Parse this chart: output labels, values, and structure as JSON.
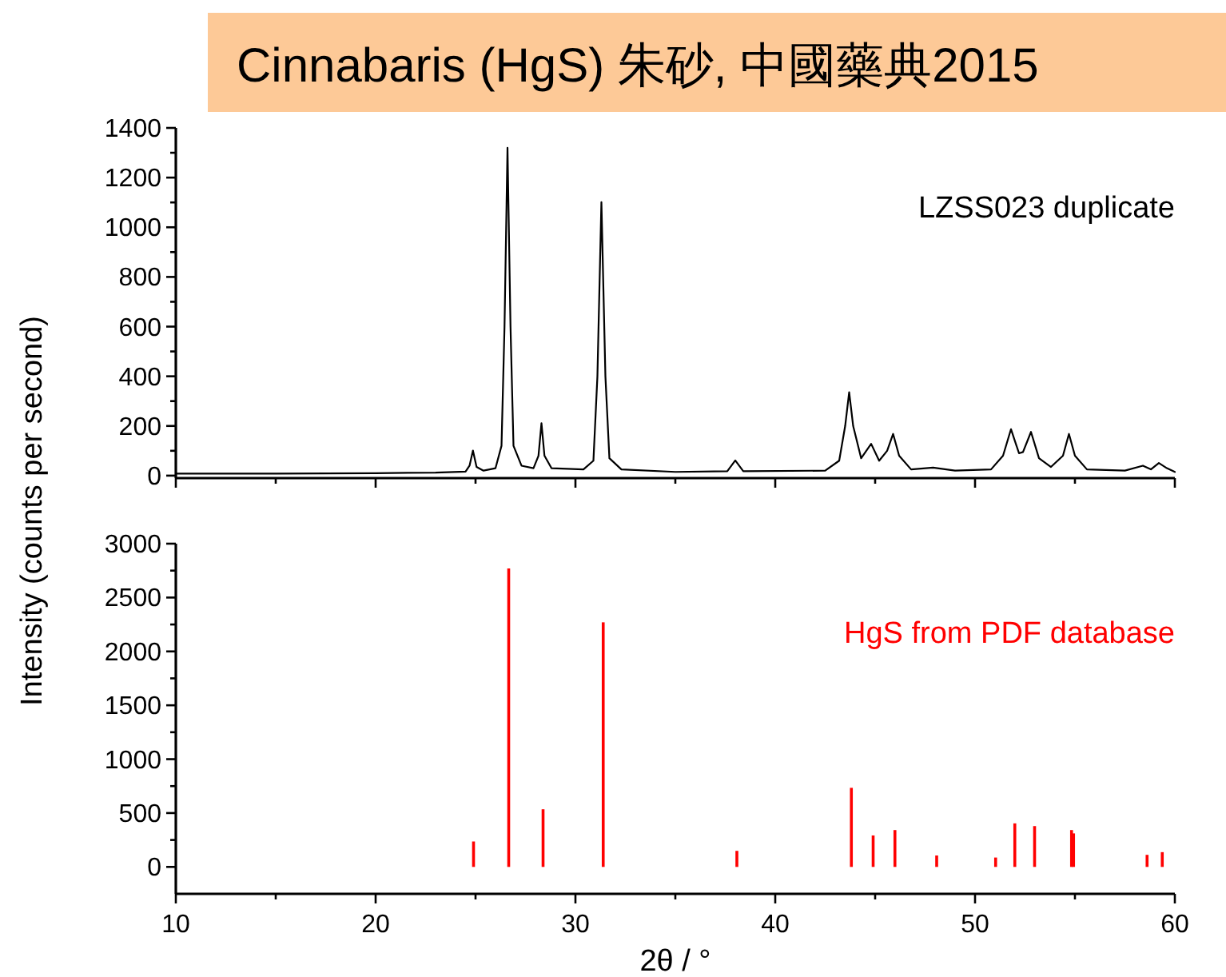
{
  "chart_data": [
    {
      "type": "line",
      "title": "Cinnabaris (HgS) 朱砂, 中國藥典2015",
      "ylabel": "Intensity (counts per second)",
      "tick_labels": "y",
      "xlim": [
        10,
        60
      ],
      "xticks": [
        10,
        {
          "value": 15,
          "label": null
        },
        20,
        {
          "value": 25,
          "label": null
        },
        30,
        {
          "value": 35,
          "label": null
        },
        40,
        {
          "value": 45,
          "label": null
        },
        50,
        {
          "value": 55,
          "label": null
        },
        60
      ],
      "ylim": [
        -10,
        1400
      ],
      "yticks": [
        0,
        {
          "value": 100,
          "label": null
        },
        200,
        {
          "value": 300,
          "label": null
        },
        400,
        {
          "value": 500,
          "label": null
        },
        600,
        {
          "value": 700,
          "label": null
        },
        800,
        {
          "value": 900,
          "label": null
        },
        1000,
        {
          "value": 1100,
          "label": null
        },
        1200,
        {
          "value": 1300,
          "label": null
        },
        1400
      ],
      "series": [
        {
          "name": "LZSS023 duplicate",
          "color": "#000000",
          "x": [
            10,
            15,
            20,
            23,
            24.5,
            24.7,
            24.87,
            25.05,
            25.4,
            26.0,
            26.3,
            26.45,
            26.6,
            26.75,
            26.9,
            27.3,
            27.9,
            28.15,
            28.3,
            28.45,
            28.8,
            30.4,
            30.9,
            31.1,
            31.3,
            31.5,
            31.7,
            32.3,
            35,
            37.6,
            38.0,
            38.4,
            42.5,
            43.2,
            43.5,
            43.7,
            43.9,
            44.3,
            44.8,
            45.2,
            45.6,
            45.9,
            46.2,
            46.8,
            47.9,
            49,
            50.8,
            51.4,
            51.8,
            52.2,
            52.4,
            52.8,
            53.2,
            53.8,
            54.4,
            54.7,
            55.0,
            55.6,
            57.5,
            58.4,
            58.8,
            59.2,
            59.6,
            60
          ],
          "values": [
            8,
            8,
            10,
            12,
            16,
            40,
            101,
            35,
            20,
            30,
            120,
            600,
            1320,
            600,
            120,
            40,
            30,
            80,
            211,
            80,
            30,
            25,
            60,
            400,
            1101,
            400,
            70,
            25,
            15,
            18,
            61,
            18,
            20,
            60,
            200,
            336,
            200,
            70,
            128,
            60,
            100,
            168,
            80,
            25,
            32,
            20,
            25,
            80,
            187,
            90,
            95,
            176,
            70,
            35,
            80,
            168,
            80,
            25,
            20,
            40,
            25,
            51,
            30,
            15
          ]
        }
      ]
    },
    {
      "type": "bar",
      "xlabel": "2θ / °",
      "xlim": [
        10,
        60
      ],
      "xticks": [
        10,
        {
          "value": 15,
          "label": null
        },
        20,
        {
          "value": 25,
          "label": null
        },
        30,
        {
          "value": 35,
          "label": null
        },
        40,
        {
          "value": 45,
          "label": null
        },
        50,
        {
          "value": 55,
          "label": null
        },
        60
      ],
      "ylim": [
        -250,
        3000
      ],
      "yticks": [
        0,
        {
          "value": 250,
          "label": null
        },
        500,
        {
          "value": 750,
          "label": null
        },
        1000,
        {
          "value": 1250,
          "label": null
        },
        1500,
        {
          "value": 1750,
          "label": null
        },
        2000,
        {
          "value": 2250,
          "label": null
        },
        2500,
        {
          "value": 2750,
          "label": null
        },
        3000
      ],
      "series": [
        {
          "name": "HgS from PDF database",
          "color": "#ff0000",
          "x": [
            24.9,
            26.66,
            28.38,
            31.39,
            38.08,
            43.81,
            44.9,
            45.99,
            48.08,
            51.03,
            51.99,
            52.98,
            54.83,
            54.93,
            58.61,
            59.37
          ],
          "values": [
            236,
            2770,
            535,
            2270,
            149,
            734,
            292,
            342,
            106,
            87,
            404,
            379,
            342,
            311,
            112,
            137
          ]
        }
      ]
    }
  ]
}
